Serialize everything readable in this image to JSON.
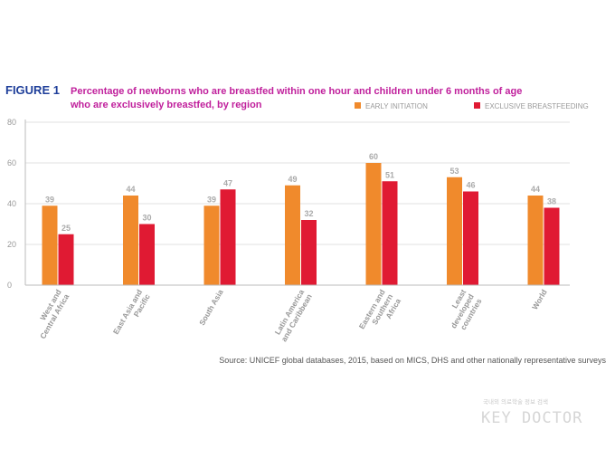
{
  "colors": {
    "title": "#1f3f9a",
    "subtitle": "#c0209c",
    "early": "#f08a2c",
    "exclusive": "#e01a33",
    "axis": "#bbbbbb",
    "grid": "#e2e2e2"
  },
  "chart_data": {
    "type": "bar",
    "figure_label": "FIGURE 1",
    "title_line1": "Percentage of newborns who are breastfed within one hour and children under 6 months of age",
    "title_line2": "who are exclusively breastfed, by region",
    "categories": [
      [
        "West and",
        "Central Africa"
      ],
      [
        "East Asia and",
        "Pacific"
      ],
      [
        "South Asia"
      ],
      [
        "Latin America",
        "and Caribbean"
      ],
      [
        "Eastern and",
        "Southern",
        "Africa"
      ],
      [
        "Least",
        "developed",
        "countries"
      ],
      [
        "World"
      ]
    ],
    "series": [
      {
        "name": "EARLY INITIATION",
        "values": [
          39,
          44,
          39,
          49,
          60,
          53,
          44
        ]
      },
      {
        "name": "EXCLUSIVE BREASTFEEDING",
        "values": [
          25,
          30,
          47,
          32,
          51,
          46,
          38
        ]
      }
    ],
    "yticks": [
      0,
      20,
      40,
      60,
      80
    ],
    "ylim": [
      0,
      80
    ],
    "legend_position": "top-right",
    "grid": true,
    "source": "Source: UNICEF global databases, 2015, based on MICS, DHS and other nationally representative surveys"
  },
  "watermark": {
    "line1": "국내외 의료학술 정보 검색",
    "line2": "KEY DOCTOR"
  }
}
